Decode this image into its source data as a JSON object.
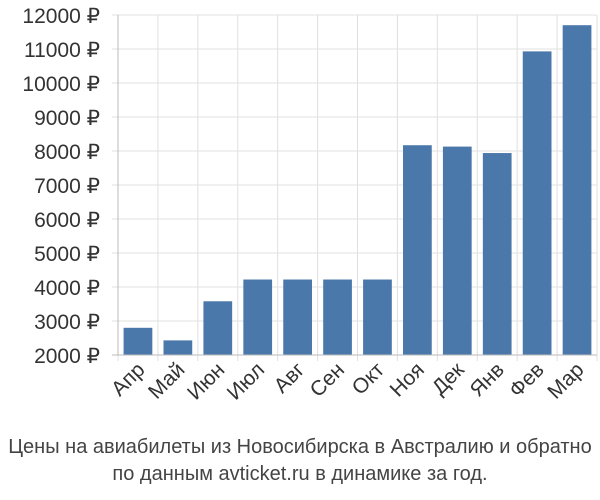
{
  "chart_data": {
    "type": "bar",
    "categories": [
      "Апр",
      "Май",
      "Июн",
      "Июл",
      "Авг",
      "Сен",
      "Окт",
      "Ноя",
      "Дек",
      "Янв",
      "Фев",
      "Мар"
    ],
    "values": [
      2800,
      2430,
      3580,
      4220,
      4220,
      4220,
      4220,
      8170,
      8130,
      7940,
      10930,
      11700
    ],
    "ylim": [
      2000,
      12000
    ],
    "yticks": [
      2000,
      3000,
      4000,
      5000,
      6000,
      7000,
      8000,
      9000,
      10000,
      11000,
      12000
    ],
    "ytick_labels": [
      "2000 ₽",
      "3000 ₽",
      "4000 ₽",
      "5000 ₽",
      "6000 ₽",
      "7000 ₽",
      "8000 ₽",
      "9000 ₽",
      "10000 ₽",
      "11000 ₽",
      "12000 ₽"
    ],
    "grid": true,
    "bar_color": "#4b78aa"
  },
  "caption": {
    "line1": "Цены на авиабилеты из Новосибирска в Австралию и обратно",
    "line2": "по данным avticket.ru в динамике за год."
  }
}
